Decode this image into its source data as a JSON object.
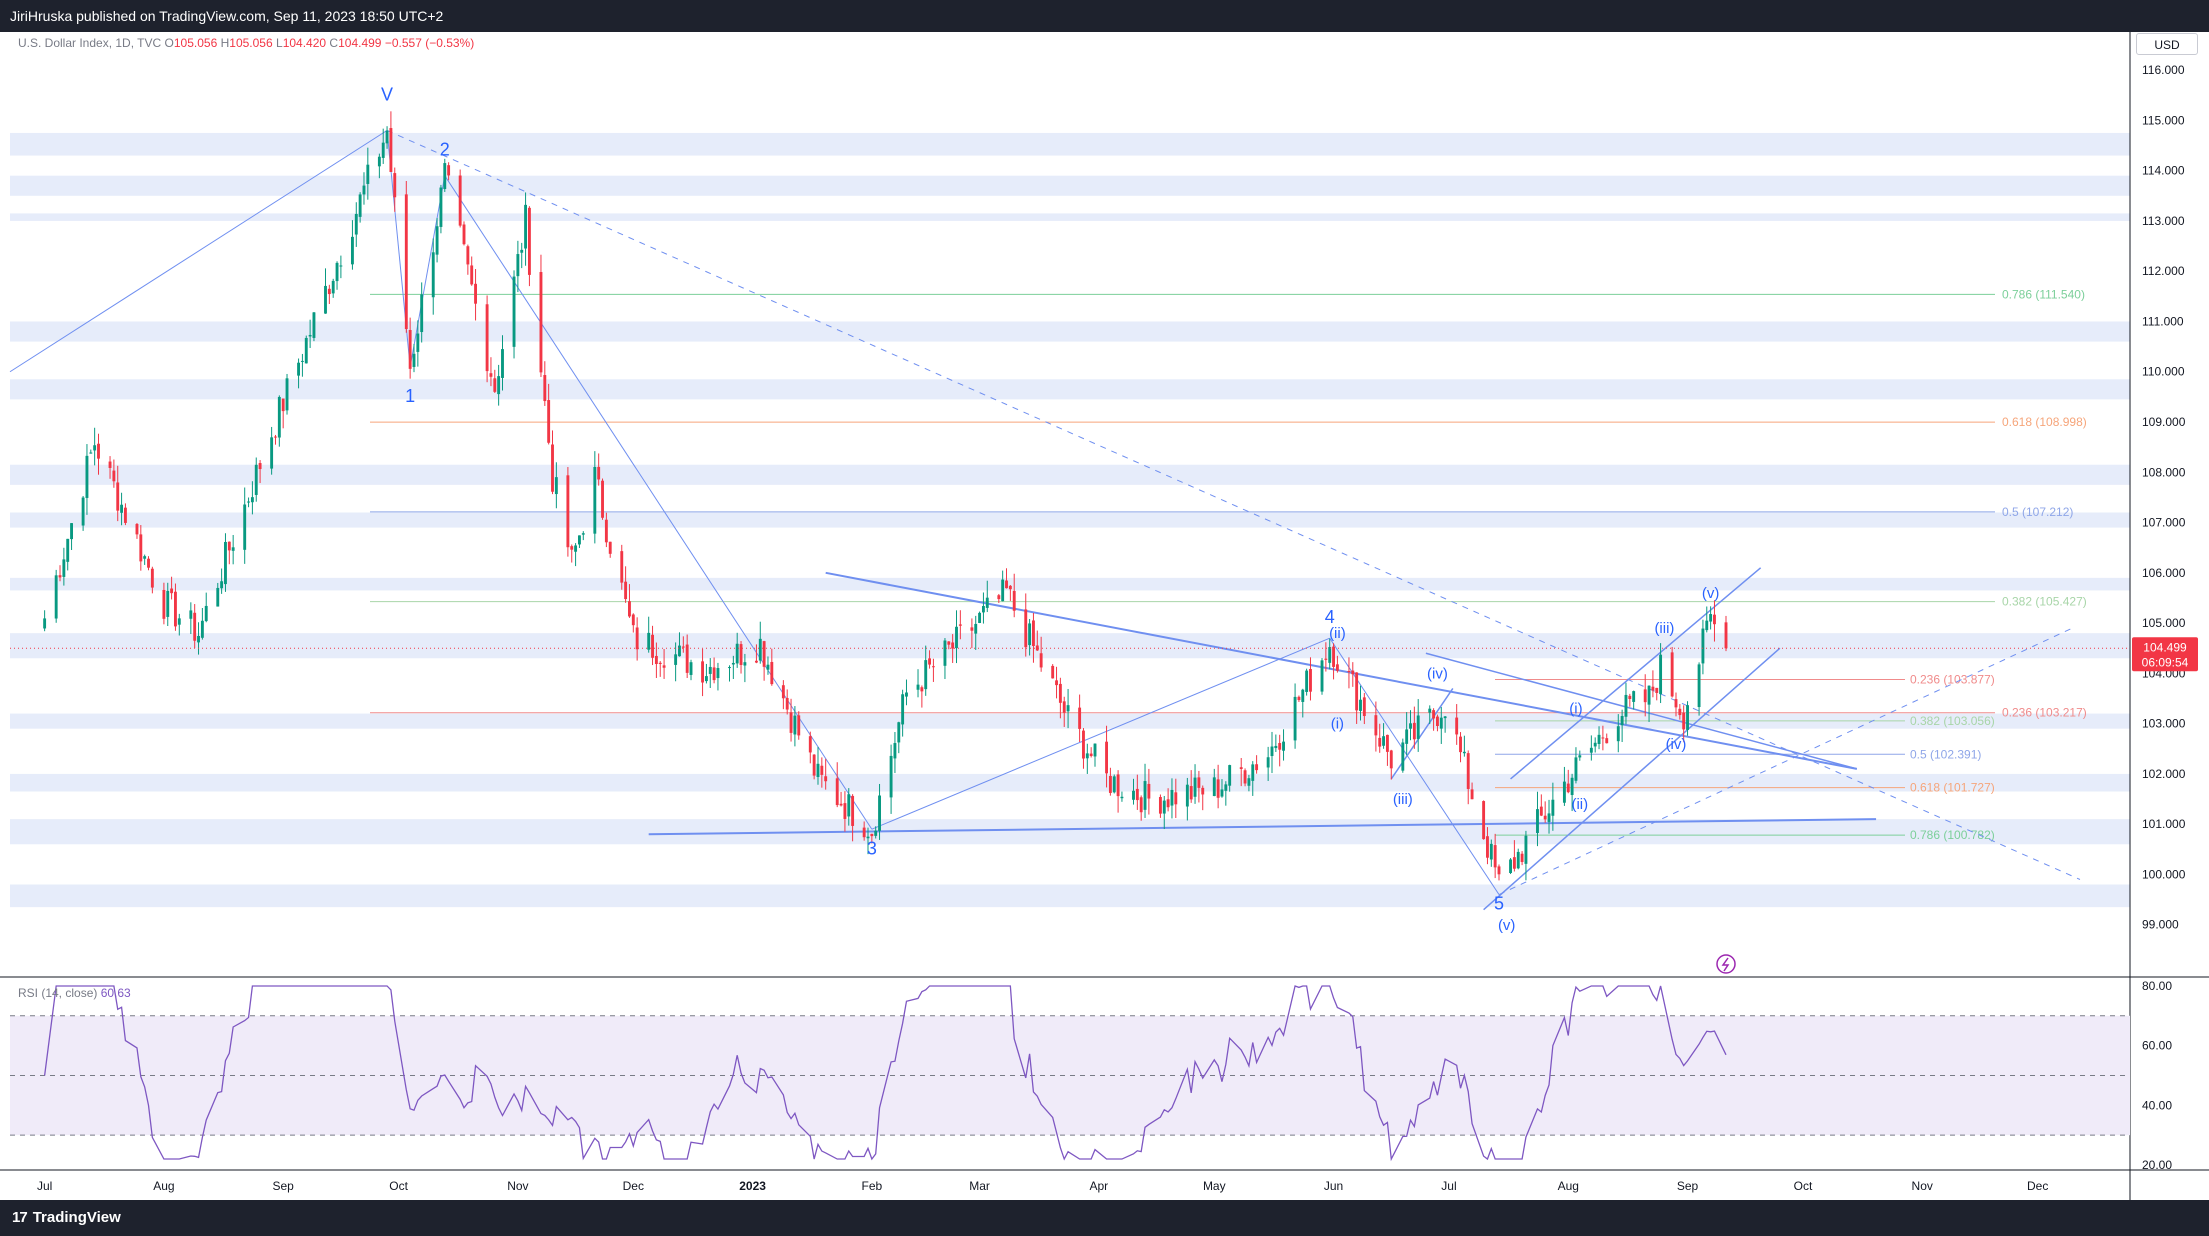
{
  "header": {
    "credit": "JiriHruska published on TradingView.com, Sep 11, 2023 18:50 UTC+2"
  },
  "legend": {
    "symbol": "U.S. Dollar Index, 1D, TVC",
    "open_label": "O",
    "open": "105.056",
    "high_label": "H",
    "high": "105.056",
    "low_label": "L",
    "low": "104.420",
    "close_label": "C",
    "close": "104.499",
    "change": "−0.557 (−0.53%)"
  },
  "currency_button": "USD",
  "price_tag": {
    "price": "104.499",
    "countdown": "06:09:54"
  },
  "rsi_legend": {
    "label": "RSI (14, close)",
    "value": "60.63"
  },
  "footer": {
    "brand": "TradingView",
    "logo": "17"
  },
  "colors": {
    "up": "#089981",
    "down": "#f23645",
    "wave_blue": "#2962ff",
    "line_blue": "#6f8ff0",
    "zone": "#e6ecfa",
    "rsi": "#7e57c2",
    "rsi_band": "#f0ebf9"
  },
  "chart_data": [
    {
      "type": "candlestick",
      "title": "U.S. Dollar Index, 1D, TVC",
      "x_ticks": [
        "Jul",
        "Aug",
        "Sep",
        "Oct",
        "Nov",
        "Dec",
        "2023",
        "Feb",
        "Mar",
        "Apr",
        "May",
        "Jun",
        "Jul",
        "Aug",
        "Sep",
        "Oct",
        "Nov",
        "Dec"
      ],
      "y_ticks": [
        "99.000",
        "100.000",
        "101.000",
        "102.000",
        "103.000",
        "104.000",
        "105.000",
        "106.000",
        "107.000",
        "108.000",
        "109.000",
        "110.000",
        "111.000",
        "112.000",
        "113.000",
        "114.000",
        "115.000",
        "116.000"
      ],
      "ylim": [
        98.0,
        116.4
      ],
      "last_price": 104.499,
      "key_points": [
        {
          "date": "2022-07-01",
          "close": 105.1
        },
        {
          "date": "2022-07-14",
          "close": 108.6
        },
        {
          "date": "2022-08-01",
          "close": 105.4
        },
        {
          "date": "2022-08-10",
          "close": 104.8
        },
        {
          "date": "2022-08-29",
          "close": 108.8
        },
        {
          "date": "2022-09-28",
          "close": 114.8
        },
        {
          "date": "2022-10-04",
          "close": 110.1
        },
        {
          "date": "2022-10-13",
          "close": 113.9
        },
        {
          "date": "2022-10-26",
          "close": 109.7
        },
        {
          "date": "2022-11-03",
          "close": 113.0
        },
        {
          "date": "2022-11-10",
          "close": 107.9
        },
        {
          "date": "2022-11-15",
          "close": 106.2
        },
        {
          "date": "2022-11-21",
          "close": 107.9
        },
        {
          "date": "2022-12-01",
          "close": 104.7
        },
        {
          "date": "2022-12-20",
          "close": 104.1
        },
        {
          "date": "2023-01-03",
          "close": 104.6
        },
        {
          "date": "2023-01-18",
          "close": 101.9
        },
        {
          "date": "2023-02-01",
          "close": 100.9
        },
        {
          "date": "2023-02-10",
          "close": 103.6
        },
        {
          "date": "2023-03-08",
          "close": 105.6
        },
        {
          "date": "2023-03-24",
          "close": 103.1
        },
        {
          "date": "2023-04-03",
          "close": 101.9
        },
        {
          "date": "2023-04-14",
          "close": 101.5
        },
        {
          "date": "2023-05-01",
          "close": 101.7
        },
        {
          "date": "2023-05-15",
          "close": 102.4
        },
        {
          "date": "2023-05-31",
          "close": 104.6
        },
        {
          "date": "2023-06-16",
          "close": 102.3
        },
        {
          "date": "2023-06-30",
          "close": 103.4
        },
        {
          "date": "2023-07-14",
          "close": 99.8
        },
        {
          "date": "2023-07-31",
          "close": 101.8
        },
        {
          "date": "2023-08-14",
          "close": 103.2
        },
        {
          "date": "2023-08-22",
          "close": 103.5
        },
        {
          "date": "2023-08-25",
          "close": 104.1
        },
        {
          "date": "2023-08-31",
          "close": 103.2
        },
        {
          "date": "2023-09-07",
          "close": 105.1
        },
        {
          "date": "2023-09-11",
          "close": 104.5
        }
      ],
      "wave_labels": [
        {
          "text": "V",
          "date": "2022-09-28",
          "price": 115.4
        },
        {
          "text": "1",
          "date": "2022-10-04",
          "price": 109.4
        },
        {
          "text": "2",
          "date": "2022-10-13",
          "price": 114.3
        },
        {
          "text": "3",
          "date": "2023-02-01",
          "price": 100.4
        },
        {
          "text": "4",
          "date": "2023-05-31",
          "price": 105.0
        },
        {
          "text": "5",
          "date": "2023-07-14",
          "price": 99.3
        },
        {
          "text": "(ii)",
          "date": "2023-06-02",
          "price": 104.7
        },
        {
          "text": "(i)",
          "date": "2023-06-02",
          "price": 102.9
        },
        {
          "text": "(iii)",
          "date": "2023-06-19",
          "price": 101.4
        },
        {
          "text": "(iv)",
          "date": "2023-06-28",
          "price": 103.9
        },
        {
          "text": "(v)",
          "date": "2023-07-16",
          "price": 98.9
        },
        {
          "text": "(i)",
          "date": "2023-08-03",
          "price": 103.2
        },
        {
          "text": "(ii)",
          "date": "2023-08-04",
          "price": 101.3
        },
        {
          "text": "(iii)",
          "date": "2023-08-26",
          "price": 104.8
        },
        {
          "text": "(iv)",
          "date": "2023-08-29",
          "price": 102.5
        },
        {
          "text": "(v)",
          "date": "2023-09-07",
          "price": 105.5
        }
      ],
      "fib_levels": [
        {
          "label": "0.786 (111.540)",
          "price": 111.54,
          "color": "#7ccf9a"
        },
        {
          "label": "0.618 (108.998)",
          "price": 108.998,
          "color": "#f6a57a"
        },
        {
          "label": "0.5 (107.212)",
          "price": 107.212,
          "color": "#8fa6e8"
        },
        {
          "label": "0.382 (105.427)",
          "price": 105.427,
          "color": "#a8d5a8"
        },
        {
          "label": "0.236 (103.217)",
          "price": 103.217,
          "color": "#f08b8b"
        }
      ],
      "fib_levels_recent": [
        {
          "label": "0.236 (103.877)",
          "price": 103.877,
          "color": "#f08b8b"
        },
        {
          "label": "0.382 (103.056)",
          "price": 103.056,
          "color": "#a8d5a8"
        },
        {
          "label": "0.5 (102.391)",
          "price": 102.391,
          "color": "#8fa6e8"
        },
        {
          "label": "0.618 (101.727)",
          "price": 101.727,
          "color": "#f6a57a"
        },
        {
          "label": "0.786 (100.782)",
          "price": 100.782,
          "color": "#7ccf9a"
        }
      ],
      "zones": [
        [
          114.3,
          114.75
        ],
        [
          113.5,
          113.9
        ],
        [
          113.0,
          113.15
        ],
        [
          110.6,
          111.0
        ],
        [
          109.45,
          109.85
        ],
        [
          107.75,
          108.15
        ],
        [
          106.9,
          107.2
        ],
        [
          105.65,
          105.9
        ],
        [
          104.3,
          104.8
        ],
        [
          102.9,
          103.2
        ],
        [
          101.65,
          102.0
        ],
        [
          100.6,
          101.1
        ],
        [
          99.35,
          99.8
        ]
      ]
    },
    {
      "type": "line",
      "title": "RSI (14, close)",
      "y_ticks": [
        "20.00",
        "40.00",
        "60.00",
        "80.00"
      ],
      "ylim": [
        20,
        82
      ],
      "bands": [
        30,
        50,
        70
      ],
      "last_value": 60.63
    }
  ]
}
